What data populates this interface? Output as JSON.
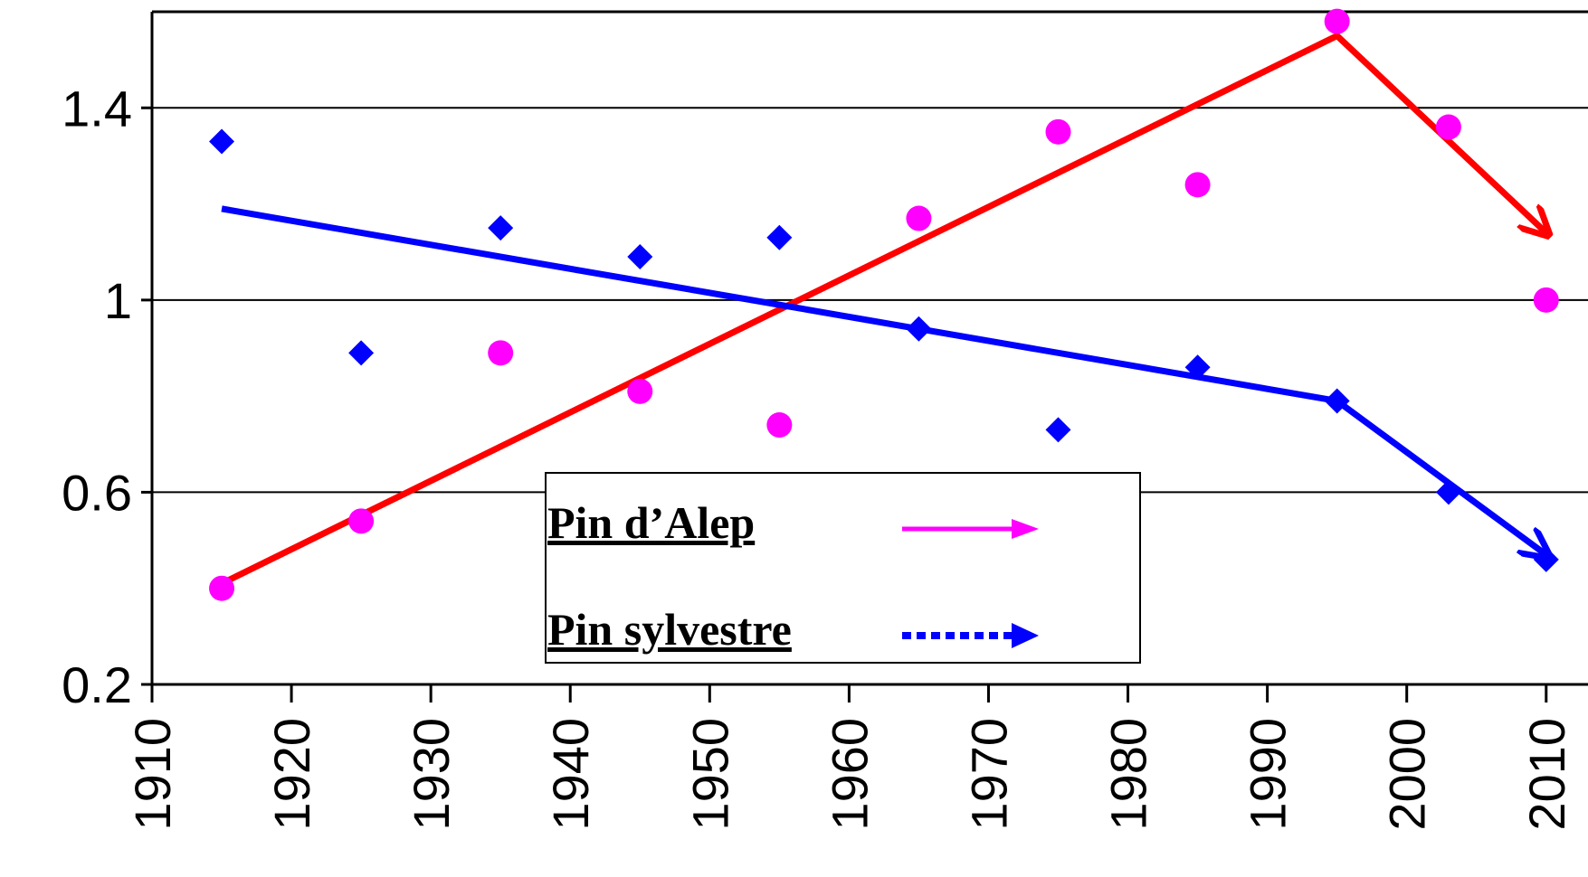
{
  "chart_data": {
    "type": "scatter",
    "xlabel": "",
    "ylabel": "",
    "xlim": [
      1910,
      2013
    ],
    "ylim": [
      0.2,
      1.6
    ],
    "grid": true,
    "legend_position": "bottom-center",
    "x_ticks": [
      "1910",
      "1920",
      "1930",
      "1940",
      "1950",
      "1960",
      "1970",
      "1980",
      "1990",
      "2000",
      "2010"
    ],
    "y_ticks": [
      "0.2",
      "0.6",
      "1",
      "1.4"
    ],
    "series": [
      {
        "name": "Pin d’Alep",
        "color": "#ff00ff",
        "marker": "circle",
        "points": [
          [
            1915,
            0.4
          ],
          [
            1925,
            0.54
          ],
          [
            1935,
            0.89
          ],
          [
            1945,
            0.81
          ],
          [
            1955,
            0.74
          ],
          [
            1965,
            1.17
          ],
          [
            1975,
            1.35
          ],
          [
            1985,
            1.24
          ],
          [
            1995,
            1.58
          ],
          [
            2003,
            1.36
          ],
          [
            2010,
            1.0
          ]
        ],
        "trend": {
          "color": "#ff0000",
          "points": [
            [
              1915,
              0.41
            ],
            [
              1995,
              1.55
            ]
          ],
          "arrow_to": [
            2010,
            1.14
          ]
        }
      },
      {
        "name": "Pin sylvestre",
        "color": "#0000ff",
        "marker": "diamond",
        "points": [
          [
            1915,
            1.33
          ],
          [
            1925,
            0.89
          ],
          [
            1935,
            1.15
          ],
          [
            1945,
            1.09
          ],
          [
            1955,
            1.13
          ],
          [
            1965,
            0.94
          ],
          [
            1975,
            0.73
          ],
          [
            1985,
            0.86
          ],
          [
            1995,
            0.79
          ],
          [
            2003,
            0.6
          ],
          [
            2010,
            0.46
          ]
        ],
        "trend": {
          "color": "#0000ff",
          "points": [
            [
              1915,
              1.19
            ],
            [
              1995,
              0.79
            ]
          ],
          "arrow_to": [
            2010,
            0.47
          ]
        }
      }
    ]
  }
}
